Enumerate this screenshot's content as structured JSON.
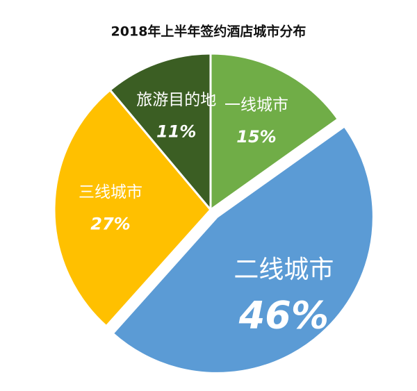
{
  "chart_data": {
    "type": "pie",
    "title": "2018年上半年签约酒店城市分布",
    "categories": [
      "一线城市",
      "二线城市",
      "三线城市",
      "旅游目的地"
    ],
    "values": [
      15,
      46,
      27,
      11
    ],
    "value_labels": [
      "15%",
      "46%",
      "27%",
      "11%"
    ],
    "colors": [
      "#70ad47",
      "#5b9bd5",
      "#ffc000",
      "#3b5e23"
    ],
    "exploded": [
      false,
      true,
      false,
      false
    ]
  }
}
